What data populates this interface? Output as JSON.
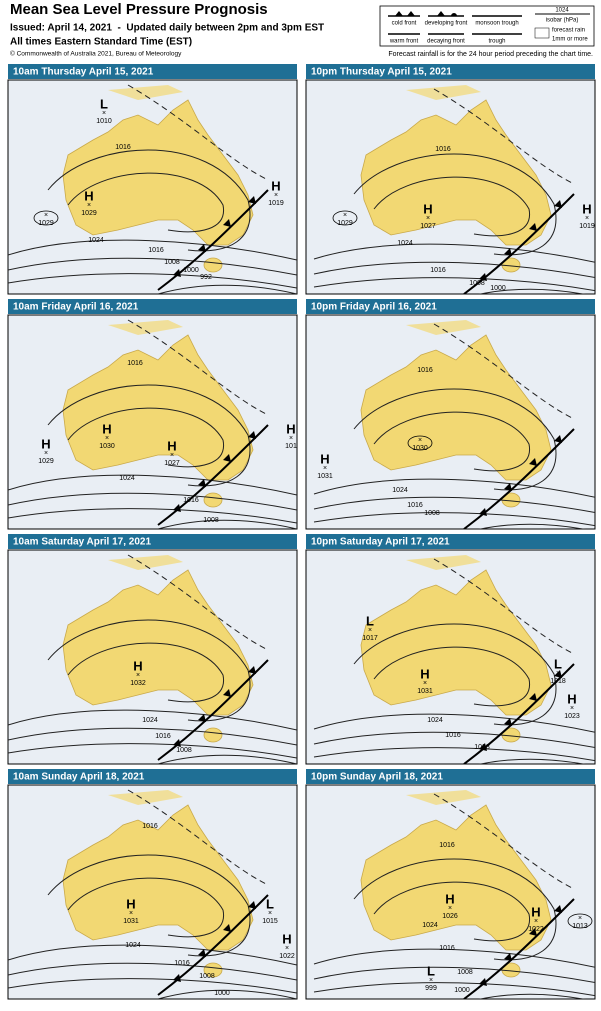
{
  "header": {
    "title": "Mean Sea Level Pressure Prognosis",
    "issued": "Issued: April 14, 2021  -  Updated daily between 2pm and 3pm EST",
    "times": "All times Eastern Standard Time (EST)",
    "copyright": "© Commonwealth of Australia 2021, Bureau of Meteorology",
    "rain_note": "Forecast rainfall is for the 24 hour period preceding the chart time."
  },
  "legend": {
    "cold_front": "cold front",
    "developing_front": "developing front",
    "monsoon_trough": "monsoon trough",
    "isobar_value": "1024",
    "isobar": "isobar (hPa)",
    "warm_front": "warm front",
    "decaying_front": "decaying front",
    "trough": "trough",
    "rain": "forecast rain",
    "rain_amount": "1mm or more"
  },
  "panels": [
    {
      "title": "10am Thursday April 15, 2021",
      "systems": [
        {
          "letter": "L",
          "pressure": "1010"
        },
        {
          "letter": "H",
          "pressure": "1029"
        },
        {
          "pressure": "1029"
        },
        {
          "letter": "H",
          "pressure": "1019"
        }
      ],
      "isobar_labels": [
        "1016",
        "1024",
        "1016",
        "1008",
        "1000",
        "992"
      ]
    },
    {
      "title": "10pm Thursday April 15, 2021",
      "systems": [
        {
          "pressure": "1029"
        },
        {
          "letter": "H",
          "pressure": "1027"
        },
        {
          "letter": "H",
          "pressure": "1019"
        }
      ],
      "isobar_labels": [
        "1016",
        "1024",
        "1016",
        "1008",
        "1000"
      ]
    },
    {
      "title": "10am Friday April 16, 2021",
      "systems": [
        {
          "letter": "H",
          "pressure": "1029"
        },
        {
          "letter": "H",
          "pressure": "1030"
        },
        {
          "letter": "H",
          "pressure": "1027"
        },
        {
          "letter": "H",
          "pressure": "101"
        }
      ],
      "isobar_labels": [
        "1016",
        "1024",
        "1016",
        "1008"
      ]
    },
    {
      "title": "10pm Friday April 16, 2021",
      "systems": [
        {
          "letter": "H",
          "pressure": "1031"
        },
        {
          "pressure": "1030"
        }
      ],
      "isobar_labels": [
        "1016",
        "1024",
        "1016",
        "1008"
      ]
    },
    {
      "title": "10am Saturday April 17, 2021",
      "systems": [
        {
          "letter": "H",
          "pressure": "1032"
        }
      ],
      "isobar_labels": [
        "1024",
        "1016",
        "1008"
      ]
    },
    {
      "title": "10pm Saturday April 17, 2021",
      "systems": [
        {
          "letter": "L",
          "pressure": "1017"
        },
        {
          "letter": "H",
          "pressure": "1031"
        },
        {
          "letter": "L",
          "pressure": "1018"
        },
        {
          "letter": "H",
          "pressure": "1023"
        }
      ],
      "isobar_labels": [
        "1024",
        "1016",
        "1008"
      ]
    },
    {
      "title": "10am Sunday April 18, 2021",
      "systems": [
        {
          "letter": "H",
          "pressure": "1031"
        },
        {
          "letter": "L",
          "pressure": "1015"
        },
        {
          "letter": "H",
          "pressure": "1022"
        }
      ],
      "isobar_labels": [
        "1016",
        "1024",
        "1016",
        "1008",
        "1000"
      ]
    },
    {
      "title": "10pm Sunday April 18, 2021",
      "systems": [
        {
          "letter": "H",
          "pressure": "1026"
        },
        {
          "letter": "H",
          "pressure": "1022"
        },
        {
          "pressure": "1013"
        },
        {
          "letter": "L",
          "pressure": "999"
        }
      ],
      "isobar_labels": [
        "1016",
        "1024",
        "1016",
        "1008",
        "1000"
      ]
    }
  ]
}
